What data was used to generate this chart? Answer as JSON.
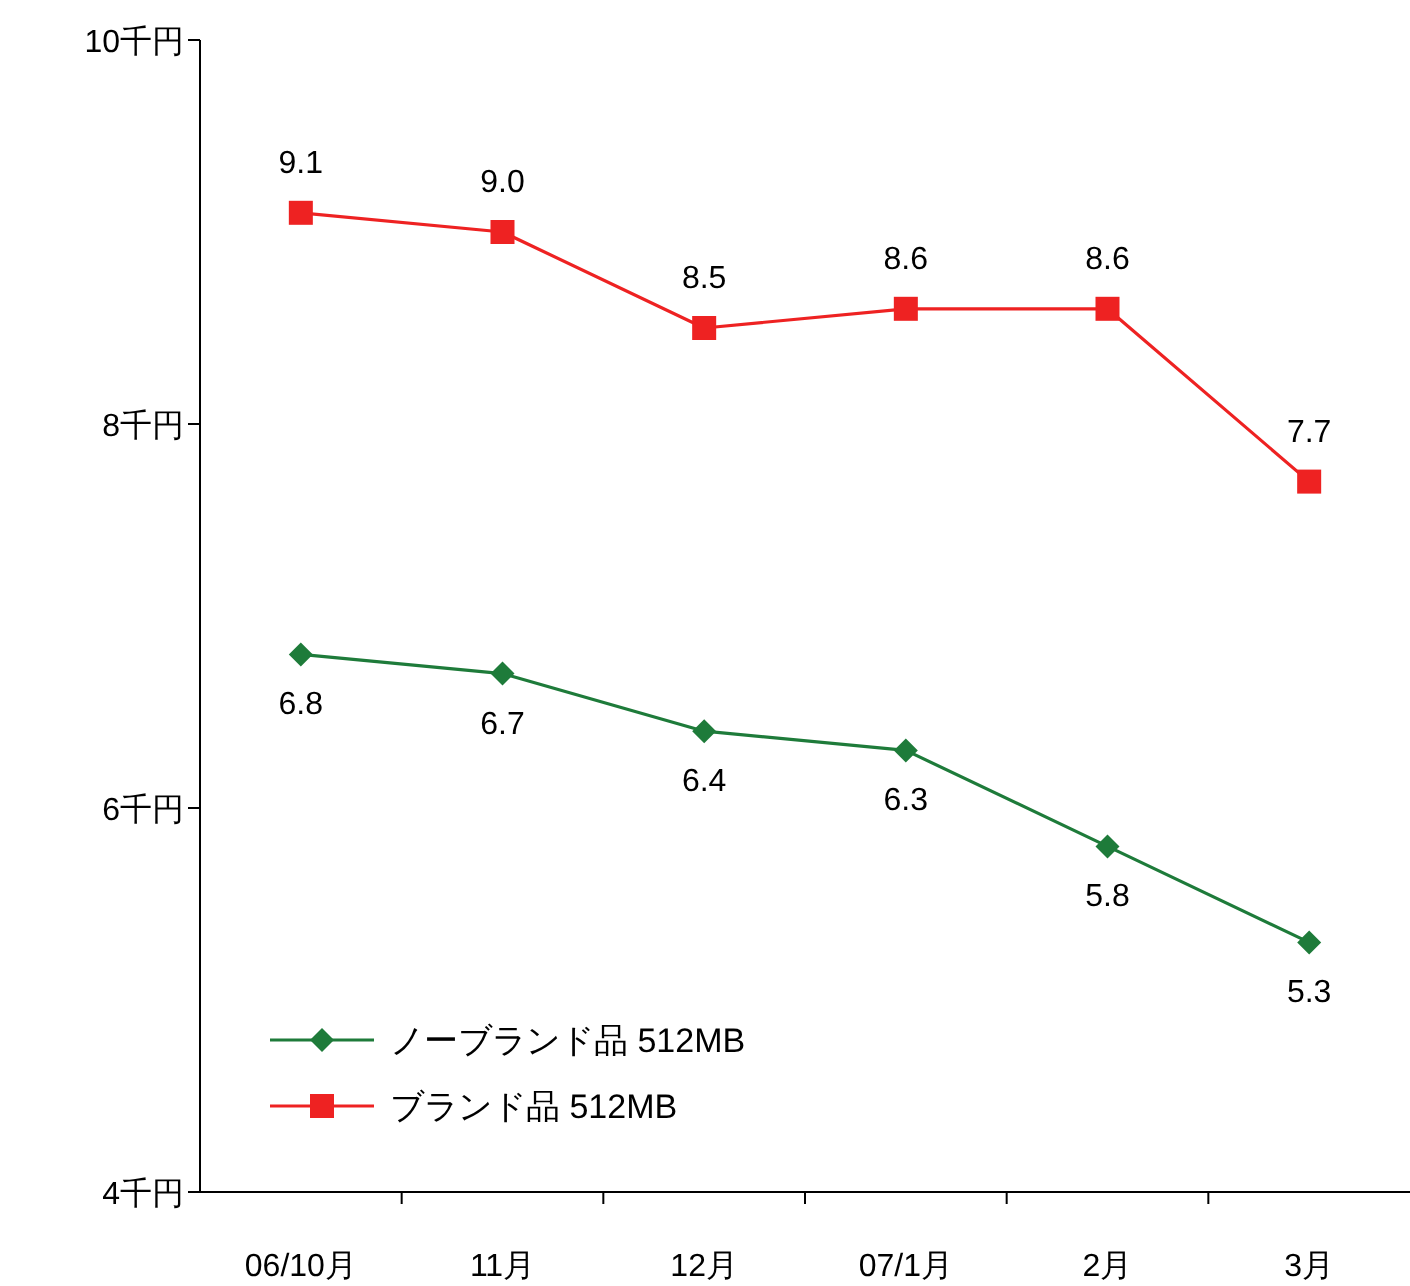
{
  "chart_data": {
    "type": "line",
    "categories": [
      "06/10月",
      "11月",
      "12月",
      "07/1月",
      "2月",
      "3月"
    ],
    "ylim": [
      4,
      10
    ],
    "yticks": [
      {
        "value": 4,
        "label": "4千円"
      },
      {
        "value": 6,
        "label": "6千円"
      },
      {
        "value": 8,
        "label": "8千円"
      },
      {
        "value": 10,
        "label": "10千円"
      }
    ],
    "series": [
      {
        "name": "ノーブランド品 512MB",
        "color": "#1e7b3a",
        "marker": "diamond",
        "values": [
          6.8,
          6.7,
          6.4,
          6.3,
          5.8,
          5.3
        ],
        "value_labels": [
          "6.8",
          "6.7",
          "6.4",
          "6.3",
          "5.8",
          "5.3"
        ]
      },
      {
        "name": "ブランド品 512MB",
        "color": "#ee2222",
        "marker": "square",
        "values": [
          9.1,
          9.0,
          8.5,
          8.6,
          8.6,
          7.7
        ],
        "value_labels": [
          "9.1",
          "9.0",
          "8.5",
          "8.6",
          "8.6",
          "7.7"
        ]
      }
    ],
    "grid": false,
    "legend": "bottom left",
    "line_style": "solid"
  }
}
